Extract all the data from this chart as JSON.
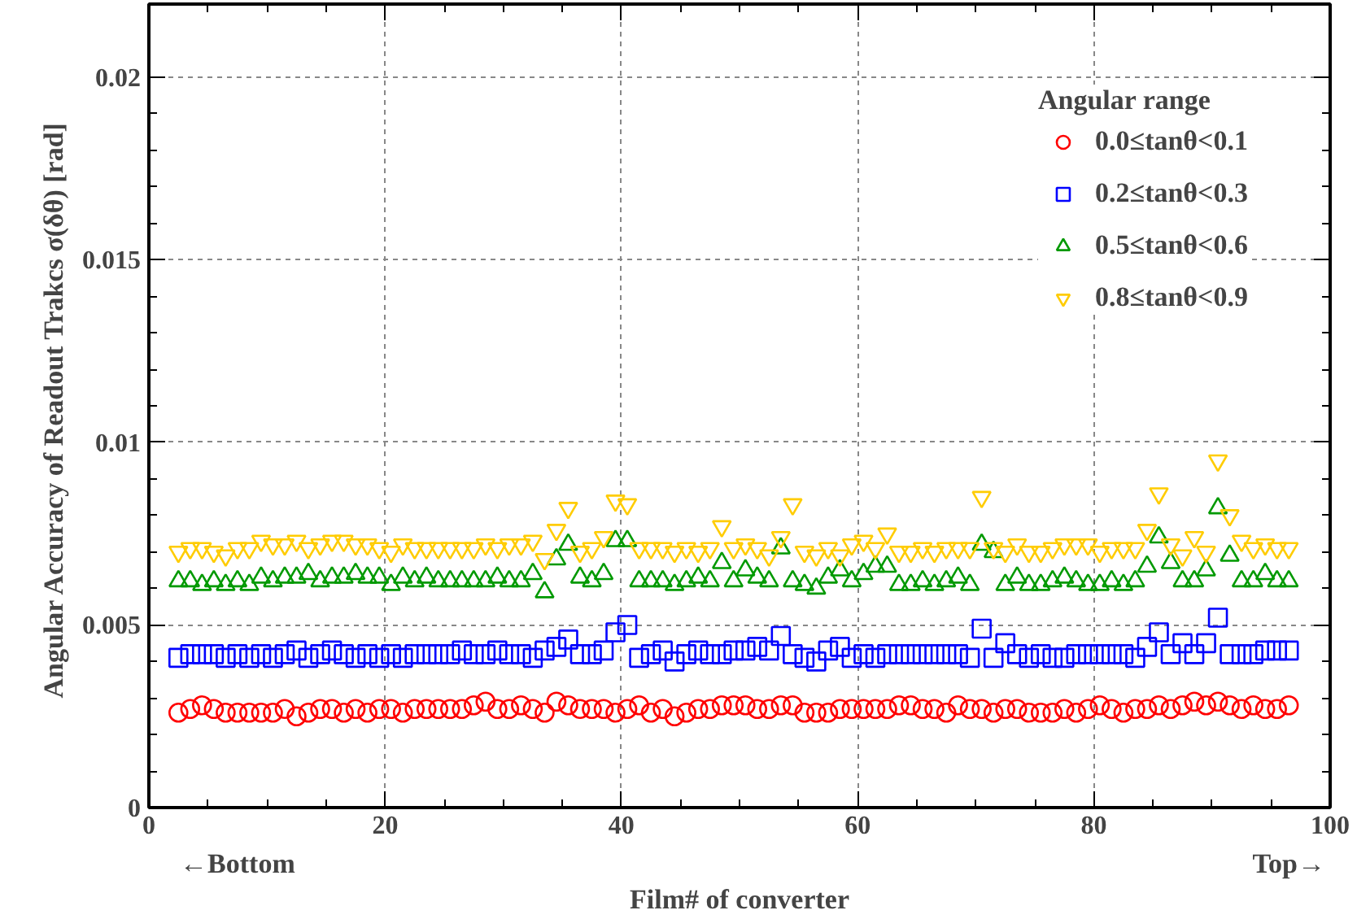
{
  "chart_data": {
    "type": "scatter",
    "xlabel": "Film# of converter",
    "ylabel": "Angular Accuracy of Readout Trakcs  σ(δθ) [rad]",
    "legend_title": "Angular range",
    "annotations": [
      "←Bottom",
      "Top→"
    ],
    "xlim": [
      0,
      100
    ],
    "xticks": [
      0,
      20,
      40,
      60,
      80,
      100
    ],
    "ylim": [
      0,
      0.022
    ],
    "yticks": [
      0,
      0.005,
      {
        "value": 0.01,
        "label": "0.01"
      },
      0.015,
      {
        "value": 0.02,
        "label": "0.02"
      }
    ],
    "grid": true,
    "legend": "top right",
    "x": [
      2.5,
      3.5,
      4.5,
      5.5,
      6.5,
      7.5,
      8.5,
      9.5,
      10.5,
      11.5,
      12.5,
      13.5,
      14.5,
      15.5,
      16.5,
      17.5,
      18.5,
      19.5,
      20.5,
      21.5,
      22.5,
      23.5,
      24.5,
      25.5,
      26.5,
      27.5,
      28.5,
      29.5,
      30.5,
      31.5,
      32.5,
      33.5,
      34.5,
      35.5,
      36.5,
      37.5,
      38.5,
      39.5,
      40.5,
      41.5,
      42.5,
      43.5,
      44.5,
      45.5,
      46.5,
      47.5,
      48.5,
      49.5,
      50.5,
      51.5,
      52.5,
      53.5,
      54.5,
      55.5,
      56.5,
      57.5,
      58.5,
      59.5,
      60.5,
      61.5,
      62.5,
      63.5,
      64.5,
      65.5,
      66.5,
      67.5,
      68.5,
      69.5,
      70.5,
      71.5,
      72.5,
      73.5,
      74.5,
      75.5,
      76.5,
      77.5,
      78.5,
      79.5,
      80.5,
      81.5,
      82.5,
      83.5,
      84.5,
      85.5,
      86.5,
      87.5,
      88.5,
      89.5,
      90.5,
      91.5,
      92.5,
      93.5,
      94.5,
      95.5,
      96.5
    ],
    "series": [
      {
        "name": "0.0≤tanθ<0.1",
        "color": "#ff0000",
        "marker": "circle",
        "values": [
          0.0026,
          0.0027,
          0.0028,
          0.0027,
          0.0026,
          0.0026,
          0.0026,
          0.0026,
          0.0026,
          0.0027,
          0.0025,
          0.0026,
          0.0027,
          0.0027,
          0.0026,
          0.0027,
          0.0026,
          0.0027,
          0.0027,
          0.0026,
          0.0027,
          0.0027,
          0.0027,
          0.0027,
          0.0027,
          0.0028,
          0.0029,
          0.0027,
          0.0027,
          0.0028,
          0.0027,
          0.0026,
          0.0029,
          0.0028,
          0.0027,
          0.0027,
          0.0027,
          0.0026,
          0.0027,
          0.0028,
          0.0026,
          0.0027,
          0.0025,
          0.0026,
          0.0027,
          0.0027,
          0.0028,
          0.0028,
          0.0028,
          0.0027,
          0.0027,
          0.0028,
          0.0028,
          0.0026,
          0.0026,
          0.0026,
          0.0027,
          0.0027,
          0.0027,
          0.0027,
          0.0027,
          0.0028,
          0.0028,
          0.0027,
          0.0027,
          0.0026,
          0.0028,
          0.0027,
          0.0027,
          0.0026,
          0.0027,
          0.0027,
          0.0026,
          0.0026,
          0.0026,
          0.0027,
          0.0026,
          0.0027,
          0.0028,
          0.0027,
          0.0026,
          0.0027,
          0.0027,
          0.0028,
          0.0027,
          0.0028,
          0.0029,
          0.0028,
          0.0029,
          0.0028,
          0.0027,
          0.0028,
          0.0027,
          0.0027,
          0.0028
        ]
      },
      {
        "name": "0.2≤tanθ<0.3",
        "color": "#0000ff",
        "marker": "square",
        "values": [
          0.0041,
          0.0042,
          0.0042,
          0.0042,
          0.0041,
          0.0042,
          0.0041,
          0.0042,
          0.0041,
          0.0042,
          0.0043,
          0.0041,
          0.0042,
          0.0043,
          0.0042,
          0.0041,
          0.0042,
          0.0041,
          0.0042,
          0.0041,
          0.0042,
          0.0042,
          0.0042,
          0.0042,
          0.0043,
          0.0042,
          0.0042,
          0.0043,
          0.0042,
          0.0042,
          0.0041,
          0.0043,
          0.0044,
          0.0046,
          0.0042,
          0.0042,
          0.0043,
          0.0048,
          0.005,
          0.0041,
          0.0042,
          0.0043,
          0.004,
          0.0042,
          0.0043,
          0.0042,
          0.0042,
          0.0043,
          0.0043,
          0.0044,
          0.0043,
          0.0047,
          0.0042,
          0.0041,
          0.004,
          0.0043,
          0.0044,
          0.0041,
          0.0042,
          0.0041,
          0.0042,
          0.0042,
          0.0042,
          0.0042,
          0.0042,
          0.0042,
          0.0042,
          0.0041,
          0.0049,
          0.0041,
          0.0045,
          0.0042,
          0.0041,
          0.0042,
          0.0041,
          0.0041,
          0.0042,
          0.0042,
          0.0042,
          0.0042,
          0.0042,
          0.0041,
          0.0044,
          0.0048,
          0.0042,
          0.0045,
          0.0042,
          0.0045,
          0.0052,
          0.0042,
          0.0042,
          0.0042,
          0.0043,
          0.0043,
          0.0043
        ]
      },
      {
        "name": "0.5≤tanθ<0.6",
        "color": "#009900",
        "marker": "triangle",
        "values": [
          0.0062,
          0.0062,
          0.0061,
          0.0062,
          0.0061,
          0.0062,
          0.0061,
          0.0063,
          0.0062,
          0.0063,
          0.0063,
          0.0064,
          0.0062,
          0.0063,
          0.0063,
          0.0064,
          0.0063,
          0.0063,
          0.0061,
          0.0063,
          0.0062,
          0.0063,
          0.0062,
          0.0062,
          0.0062,
          0.0062,
          0.0062,
          0.0063,
          0.0062,
          0.0062,
          0.0064,
          0.0059,
          0.0068,
          0.0072,
          0.0063,
          0.0062,
          0.0064,
          0.0073,
          0.0073,
          0.0062,
          0.0062,
          0.0062,
          0.0061,
          0.0062,
          0.0063,
          0.0062,
          0.0067,
          0.0062,
          0.0065,
          0.0063,
          0.0062,
          0.0071,
          0.0062,
          0.0061,
          0.006,
          0.0063,
          0.0065,
          0.0062,
          0.0064,
          0.0066,
          0.0066,
          0.0061,
          0.0061,
          0.0062,
          0.0061,
          0.0062,
          0.0063,
          0.0061,
          0.0072,
          0.007,
          0.0061,
          0.0063,
          0.0061,
          0.0061,
          0.0062,
          0.0063,
          0.0062,
          0.0061,
          0.0061,
          0.0062,
          0.0061,
          0.0062,
          0.0066,
          0.0074,
          0.0067,
          0.0062,
          0.0062,
          0.0065,
          0.0082,
          0.0069,
          0.0062,
          0.0062,
          0.0064,
          0.0062,
          0.0062
        ]
      },
      {
        "name": "0.8≤tanθ<0.9",
        "color": "#ffcc00",
        "values": [
          0.007,
          0.0071,
          0.0071,
          0.007,
          0.0069,
          0.0071,
          0.0071,
          0.0073,
          0.0072,
          0.0072,
          0.0073,
          0.0071,
          0.0072,
          0.0073,
          0.0073,
          0.0072,
          0.0072,
          0.0071,
          0.007,
          0.0072,
          0.0071,
          0.0071,
          0.0071,
          0.0071,
          0.0071,
          0.0071,
          0.0072,
          0.0071,
          0.0072,
          0.0072,
          0.0073,
          0.0068,
          0.0076,
          0.0082,
          0.007,
          0.0071,
          0.0074,
          0.0084,
          0.0083,
          0.0071,
          0.0071,
          0.0071,
          0.007,
          0.0071,
          0.007,
          0.0071,
          0.0077,
          0.0071,
          0.0072,
          0.0071,
          0.0069,
          0.0074,
          0.0083,
          0.007,
          0.0069,
          0.0071,
          0.0069,
          0.0072,
          0.0073,
          0.0071,
          0.0075,
          0.007,
          0.007,
          0.0071,
          0.007,
          0.0071,
          0.0071,
          0.0071,
          0.0085,
          0.0071,
          0.007,
          0.0072,
          0.007,
          0.007,
          0.0071,
          0.0072,
          0.0072,
          0.0072,
          0.007,
          0.0071,
          0.0071,
          0.0071,
          0.0076,
          0.0086,
          0.0072,
          0.0069,
          0.0074,
          0.007,
          0.0095,
          0.008,
          0.0073,
          0.0071,
          0.0072,
          0.0071,
          0.0071
        ]
      }
    ]
  }
}
